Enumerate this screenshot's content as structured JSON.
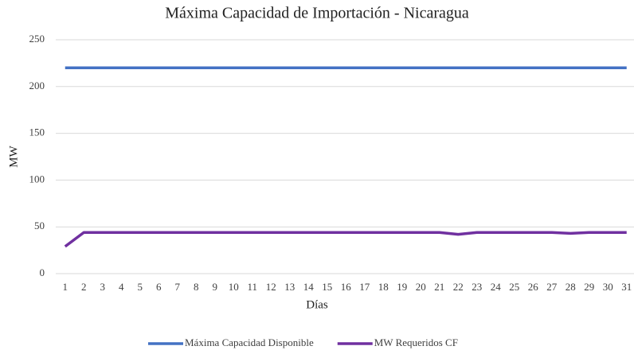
{
  "chart_data": {
    "type": "line",
    "title": "Máxima Capacidad de Importación - Nicaragua",
    "x_label": "Días",
    "y_label": "MW",
    "categories": [
      "1",
      "2",
      "3",
      "4",
      "5",
      "6",
      "7",
      "8",
      "9",
      "10",
      "11",
      "12",
      "13",
      "14",
      "15",
      "16",
      "17",
      "18",
      "19",
      "20",
      "21",
      "22",
      "23",
      "24",
      "25",
      "26",
      "27",
      "28",
      "29",
      "30",
      "31"
    ],
    "series": [
      {
        "name": "Máxima Capacidad Disponible",
        "color": "#4472c4",
        "values": [
          220,
          220,
          220,
          220,
          220,
          220,
          220,
          220,
          220,
          220,
          220,
          220,
          220,
          220,
          220,
          220,
          220,
          220,
          220,
          220,
          220,
          220,
          220,
          220,
          220,
          220,
          220,
          220,
          220,
          220,
          220
        ]
      },
      {
        "name": "MW Requeridos CF",
        "color": "#7030a0",
        "values": [
          29,
          44,
          44,
          44,
          44,
          44,
          44,
          44,
          44,
          44,
          44,
          44,
          44,
          44,
          44,
          44,
          44,
          44,
          44,
          44,
          44,
          42,
          44,
          44,
          44,
          44,
          44,
          43,
          44,
          44,
          44
        ]
      }
    ],
    "ylim": [
      0,
      250
    ],
    "yticks": [
      0,
      50,
      100,
      150,
      200,
      250
    ],
    "grid": true,
    "legend": "bottom"
  }
}
